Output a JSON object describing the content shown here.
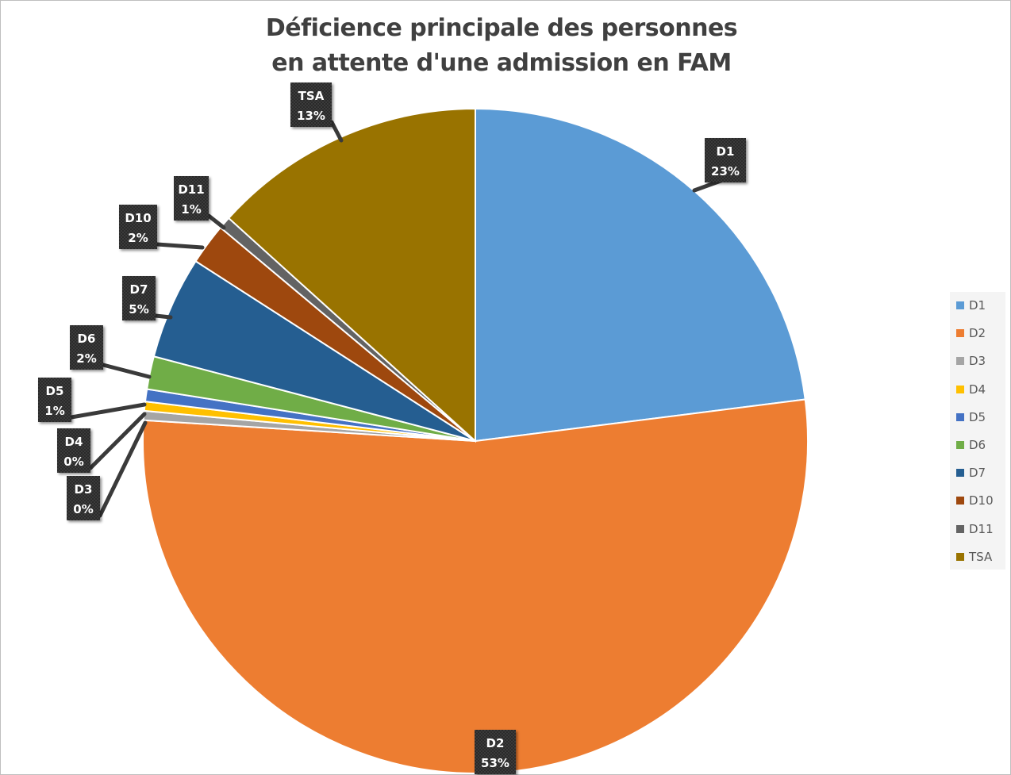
{
  "chart_data": {
    "type": "pie",
    "title_lines": [
      "Déficience principale des personnes",
      "en attente d'une admission en FAM"
    ],
    "slices": [
      {
        "label": "D1",
        "value": 23,
        "display": "23%",
        "color": "#5b9bd5"
      },
      {
        "label": "D2",
        "value": 53,
        "display": "53%",
        "color": "#ed7d31"
      },
      {
        "label": "D3",
        "value": 0.45,
        "display": "0%",
        "color": "#a5a5a5"
      },
      {
        "label": "D4",
        "value": 0.45,
        "display": "0%",
        "color": "#ffc000"
      },
      {
        "label": "D5",
        "value": 0.6,
        "display": "1%",
        "color": "#4472c4"
      },
      {
        "label": "D6",
        "value": 1.6,
        "display": "2%",
        "color": "#70ad47"
      },
      {
        "label": "D7",
        "value": 5,
        "display": "5%",
        "color": "#255e91"
      },
      {
        "label": "D10",
        "value": 2,
        "display": "2%",
        "color": "#9e480e"
      },
      {
        "label": "D11",
        "value": 0.6,
        "display": "1%",
        "color": "#636363"
      },
      {
        "label": "TSA",
        "value": 13.3,
        "display": "13%",
        "color": "#997300"
      }
    ],
    "start_angle": "12 o'clock",
    "direction": "clockwise",
    "legend": "right",
    "data_labels": "callouts with category name and percentage"
  }
}
